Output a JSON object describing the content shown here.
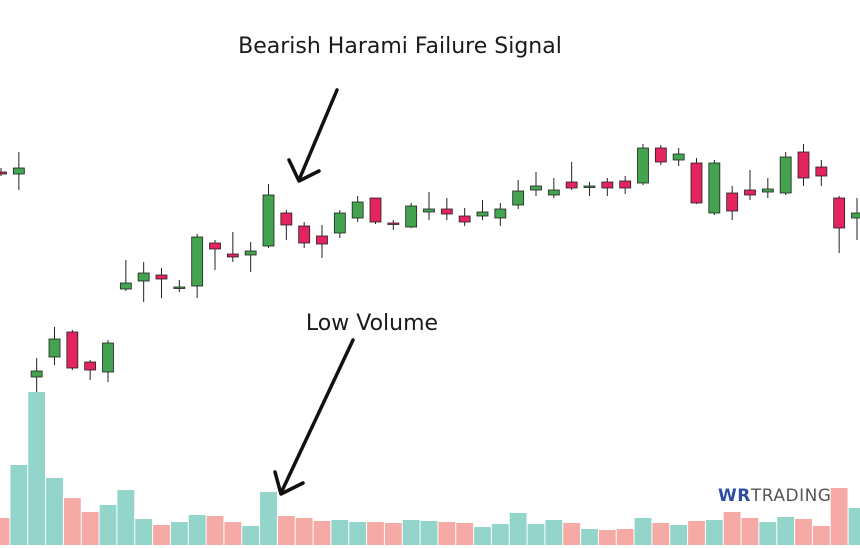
{
  "chart_data": {
    "type": "candlestick",
    "annotations": [
      "Bearish Harami Failure Signal",
      "Low Volume"
    ],
    "logo": {
      "mark": "WR",
      "name": "TRADING"
    },
    "ylim": [
      0,
      548
    ],
    "volume_ylim": [
      0,
      545
    ],
    "up_color": "#43a34f",
    "down_color": "#e3245f",
    "up_volume_color": "#93d5cb",
    "down_volume_color": "#f5aaa6",
    "open": [
      376,
      374,
      171,
      191,
      216,
      186,
      176,
      259,
      267,
      273,
      261,
      262,
      305,
      294,
      293,
      302,
      335,
      322,
      312,
      315,
      330,
      350,
      325,
      321,
      336,
      339,
      332,
      332,
      330,
      343,
      358,
      353,
      366,
      362,
      366,
      367,
      365,
      400,
      388,
      385,
      335,
      355,
      358,
      356,
      355,
      396,
      381,
      350,
      330
    ],
    "high": [
      380,
      396,
      190,
      221,
      218,
      188,
      208,
      288,
      286,
      280,
      268,
      314,
      308,
      316,
      306,
      364,
      338,
      326,
      323,
      338,
      352,
      350,
      328,
      345,
      356,
      350,
      340,
      348,
      345,
      368,
      376,
      370,
      386,
      366,
      370,
      372,
      404,
      403,
      400,
      390,
      388,
      362,
      378,
      370,
      396,
      404,
      388,
      352,
      350
    ],
    "low": [
      372,
      358,
      156,
      183,
      178,
      168,
      166,
      257,
      246,
      250,
      256,
      250,
      278,
      286,
      276,
      300,
      308,
      300,
      290,
      310,
      326,
      324,
      318,
      320,
      328,
      328,
      322,
      328,
      322,
      339,
      352,
      350,
      358,
      352,
      352,
      354,
      363,
      383,
      382,
      344,
      333,
      328,
      348,
      350,
      353,
      362,
      362,
      295,
      308
    ],
    "close": [
      374,
      380,
      177,
      209,
      180,
      178,
      205,
      265,
      275,
      269,
      261,
      311,
      299,
      291,
      297,
      353,
      323,
      305,
      304,
      335,
      346,
      326,
      324,
      342,
      339,
      334,
      326,
      336,
      339,
      357,
      362,
      358,
      360,
      362,
      360,
      360,
      400,
      386,
      394,
      345,
      385,
      337,
      353,
      359,
      391,
      370,
      372,
      320,
      335
    ],
    "volume": [
      27,
      80,
      153,
      67,
      47,
      33,
      40,
      55,
      26,
      20,
      23,
      30,
      29,
      23,
      19,
      53,
      29,
      27,
      24,
      25,
      23,
      23,
      22,
      25,
      24,
      23,
      22,
      18,
      21,
      32,
      21,
      25,
      22,
      16,
      15,
      16,
      27,
      22,
      20,
      24,
      25,
      33,
      27,
      23,
      28,
      26,
      19,
      57,
      37
    ]
  }
}
